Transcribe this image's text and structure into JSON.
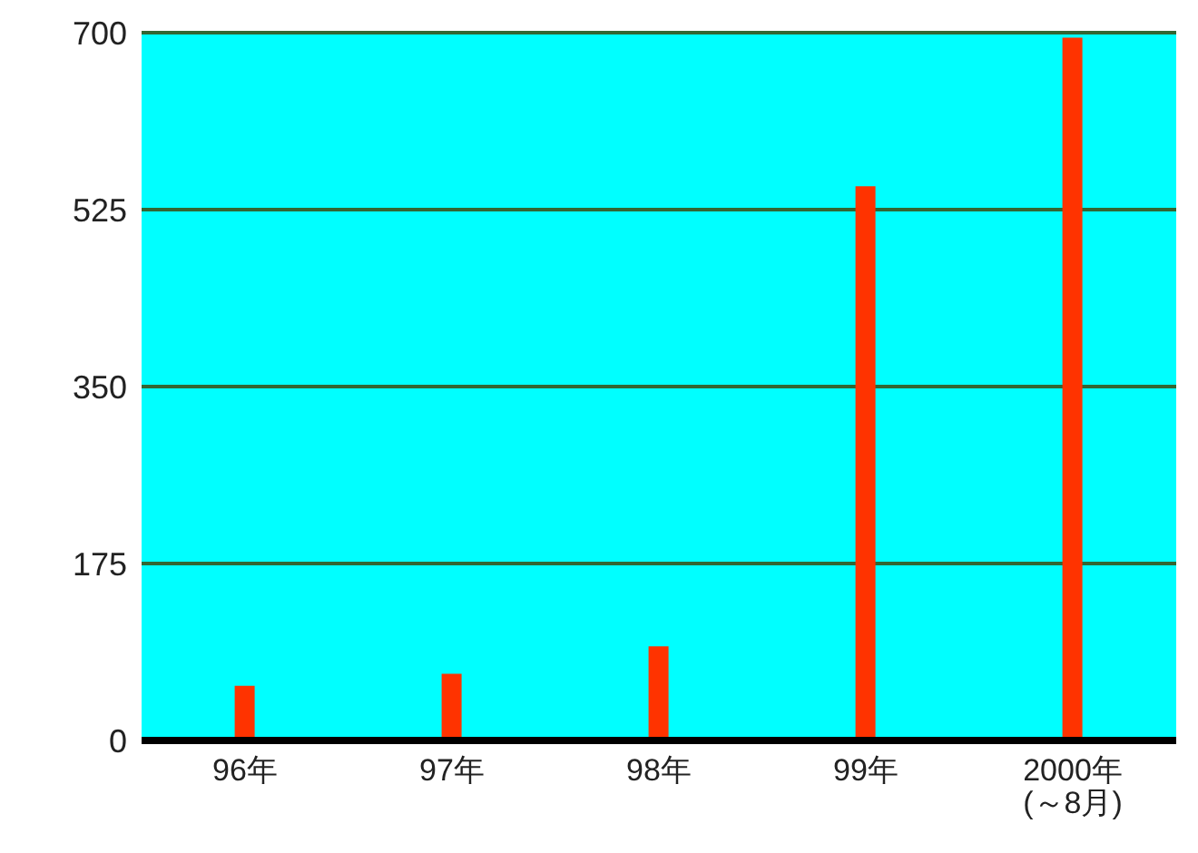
{
  "chart_data": {
    "type": "bar",
    "categories": [
      "96年",
      "97年",
      "98年",
      "99年",
      "2000年\n(～8月)"
    ],
    "values": [
      54,
      66,
      93,
      548,
      695
    ],
    "color": "#ff3300",
    "ylim": [
      0,
      700
    ],
    "yticks": [
      0,
      175,
      350,
      525,
      700
    ],
    "grid": "y"
  }
}
